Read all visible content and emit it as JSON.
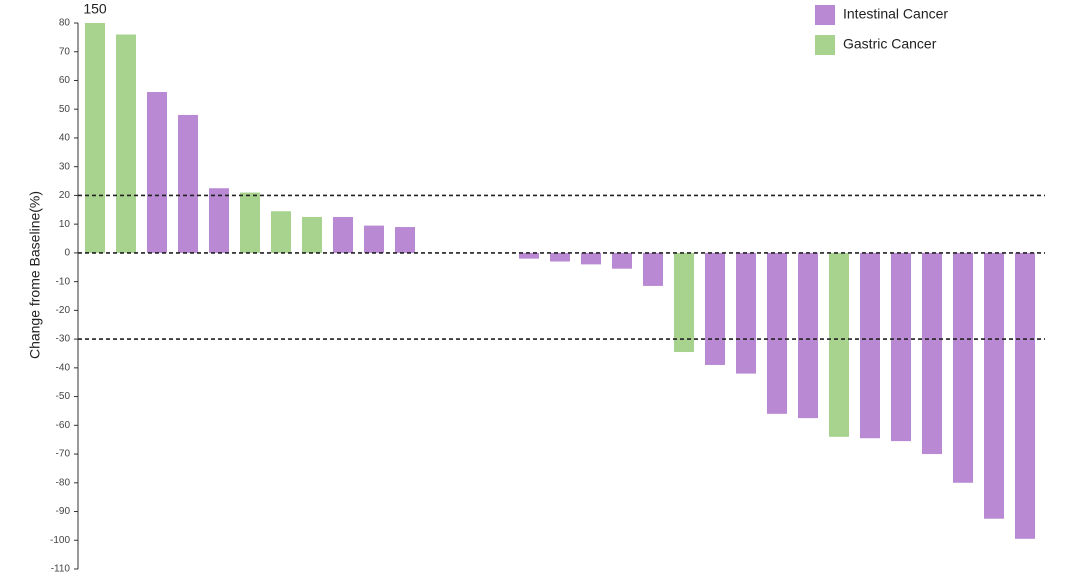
{
  "chart_data": {
    "type": "bar",
    "y_label": "Change frome Baseline(%)",
    "ylim": [
      -110,
      80
    ],
    "yticks": [
      80,
      70,
      60,
      50,
      40,
      30,
      20,
      10,
      0,
      -10,
      -20,
      -30,
      -40,
      -50,
      -60,
      -70,
      -80,
      -90,
      -100,
      -110
    ],
    "reference_lines": [
      20,
      0,
      -30
    ],
    "legend": "top-right",
    "series": [
      {
        "name": "Intestinal Cancer",
        "color": "#b98ad3",
        "values": [
          null,
          null,
          56,
          48,
          22.5,
          null,
          null,
          null,
          12.5,
          9.5,
          9,
          0,
          0,
          0,
          -2,
          -3,
          -4,
          -5.5,
          -11.5,
          null,
          -39,
          -42,
          -56,
          -57.5,
          null,
          -64.5,
          -65.5,
          -70,
          -80,
          -92.5,
          -99.5
        ]
      },
      {
        "name": "Gastric Cancer",
        "color": "#a8d38e",
        "values": [
          150,
          76,
          null,
          null,
          null,
          21,
          14.5,
          12.5,
          null,
          null,
          null,
          null,
          null,
          null,
          null,
          null,
          null,
          null,
          null,
          -34.5,
          null,
          null,
          null,
          null,
          -64,
          null,
          null,
          null,
          null,
          null,
          null
        ],
        "value_labels": [
          "150",
          null,
          null,
          null,
          null,
          null,
          null,
          null,
          null,
          null,
          null,
          null,
          null,
          null,
          null,
          null,
          null,
          null,
          null,
          null,
          null,
          null,
          null,
          null,
          null,
          null,
          null,
          null,
          null,
          null,
          null
        ]
      }
    ]
  }
}
